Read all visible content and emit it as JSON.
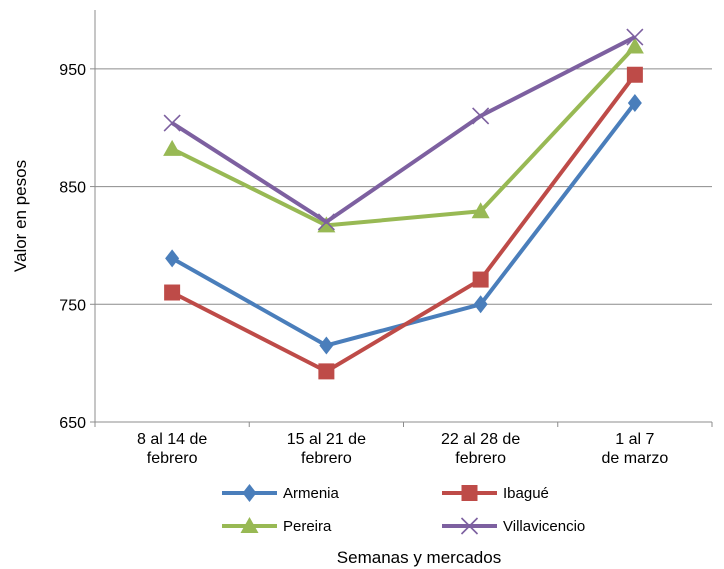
{
  "chart_data": {
    "type": "line",
    "categories": [
      [
        "8 al 14 de",
        "febrero"
      ],
      [
        "15 al 21 de",
        "febrero"
      ],
      [
        "22 al 28 de",
        "febrero"
      ],
      [
        "1 al 7",
        "de marzo"
      ]
    ],
    "series": [
      {
        "name": "Armenia",
        "values": [
          789,
          715,
          750,
          921
        ],
        "color": "#4a7ebb",
        "marker": "diamond"
      },
      {
        "name": "Ibagué",
        "values": [
          760,
          693,
          771,
          945
        ],
        "color": "#be4b48",
        "marker": "square"
      },
      {
        "name": "Pereira",
        "values": [
          882,
          817,
          829,
          969
        ],
        "color": "#98b954",
        "marker": "triangle"
      },
      {
        "name": "Villavicencio",
        "values": [
          904,
          820,
          910,
          977
        ],
        "color": "#7d60a0",
        "marker": "x"
      }
    ],
    "xlabel": "Semanas y mercados",
    "ylabel": "Valor en pesos",
    "ylim": [
      650,
      1000
    ],
    "yticks": [
      650,
      750,
      850,
      950
    ],
    "grid": true,
    "legend_position": "bottom"
  }
}
